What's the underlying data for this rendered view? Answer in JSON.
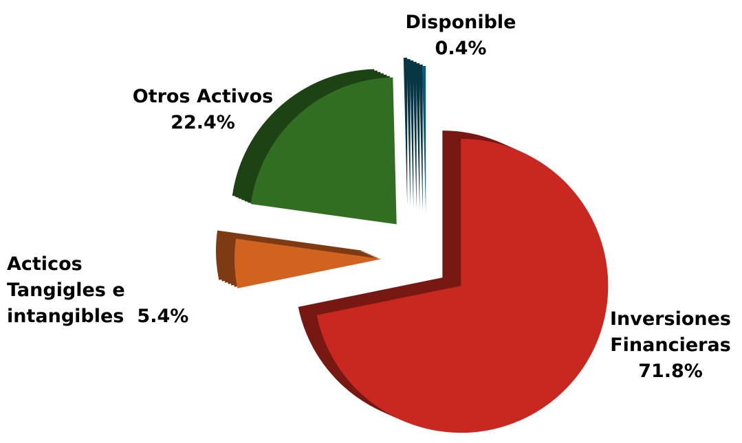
{
  "chart_data": {
    "type": "pie",
    "categories": [
      "Inversiones Financieras",
      "Acticos Tangigles e intangibles",
      "Otros Activos",
      "Disponible"
    ],
    "values": [
      71.8,
      5.4,
      22.4,
      0.4
    ],
    "value_labels": [
      "71.8%",
      "5.4%",
      "22.4%",
      "0.4%"
    ],
    "colors": [
      "#c8281f",
      "#d2621f",
      "#316e22",
      "#0d5a72"
    ]
  }
}
